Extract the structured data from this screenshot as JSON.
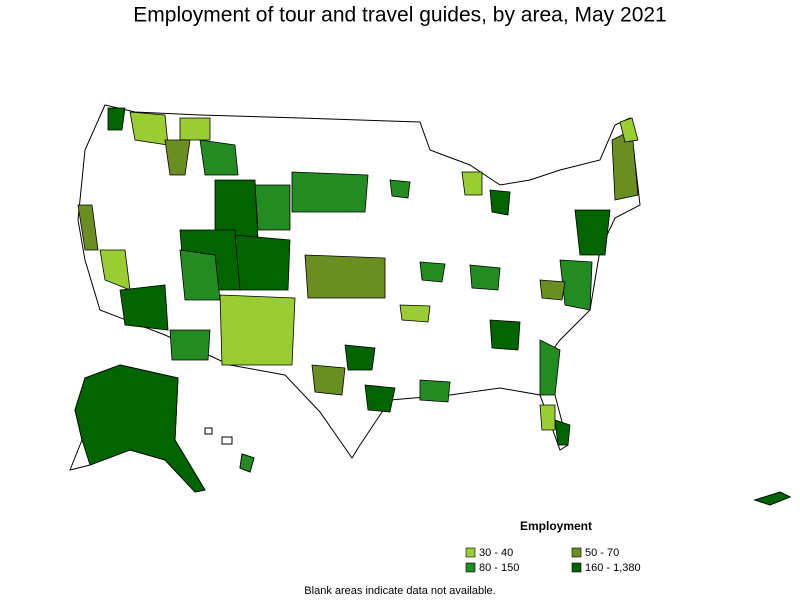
{
  "title": "Employment of tour and travel guides, by area, May 2021",
  "legend": {
    "title": "Employment",
    "items": [
      {
        "label": "30 - 40",
        "color": "#9acd32"
      },
      {
        "label": "50 - 70",
        "color": "#6b8e23"
      },
      {
        "label": "80 - 150",
        "color": "#228b22"
      },
      {
        "label": "160 - 1,380",
        "color": "#006400"
      }
    ]
  },
  "note": "Blank areas indicate data not available."
}
